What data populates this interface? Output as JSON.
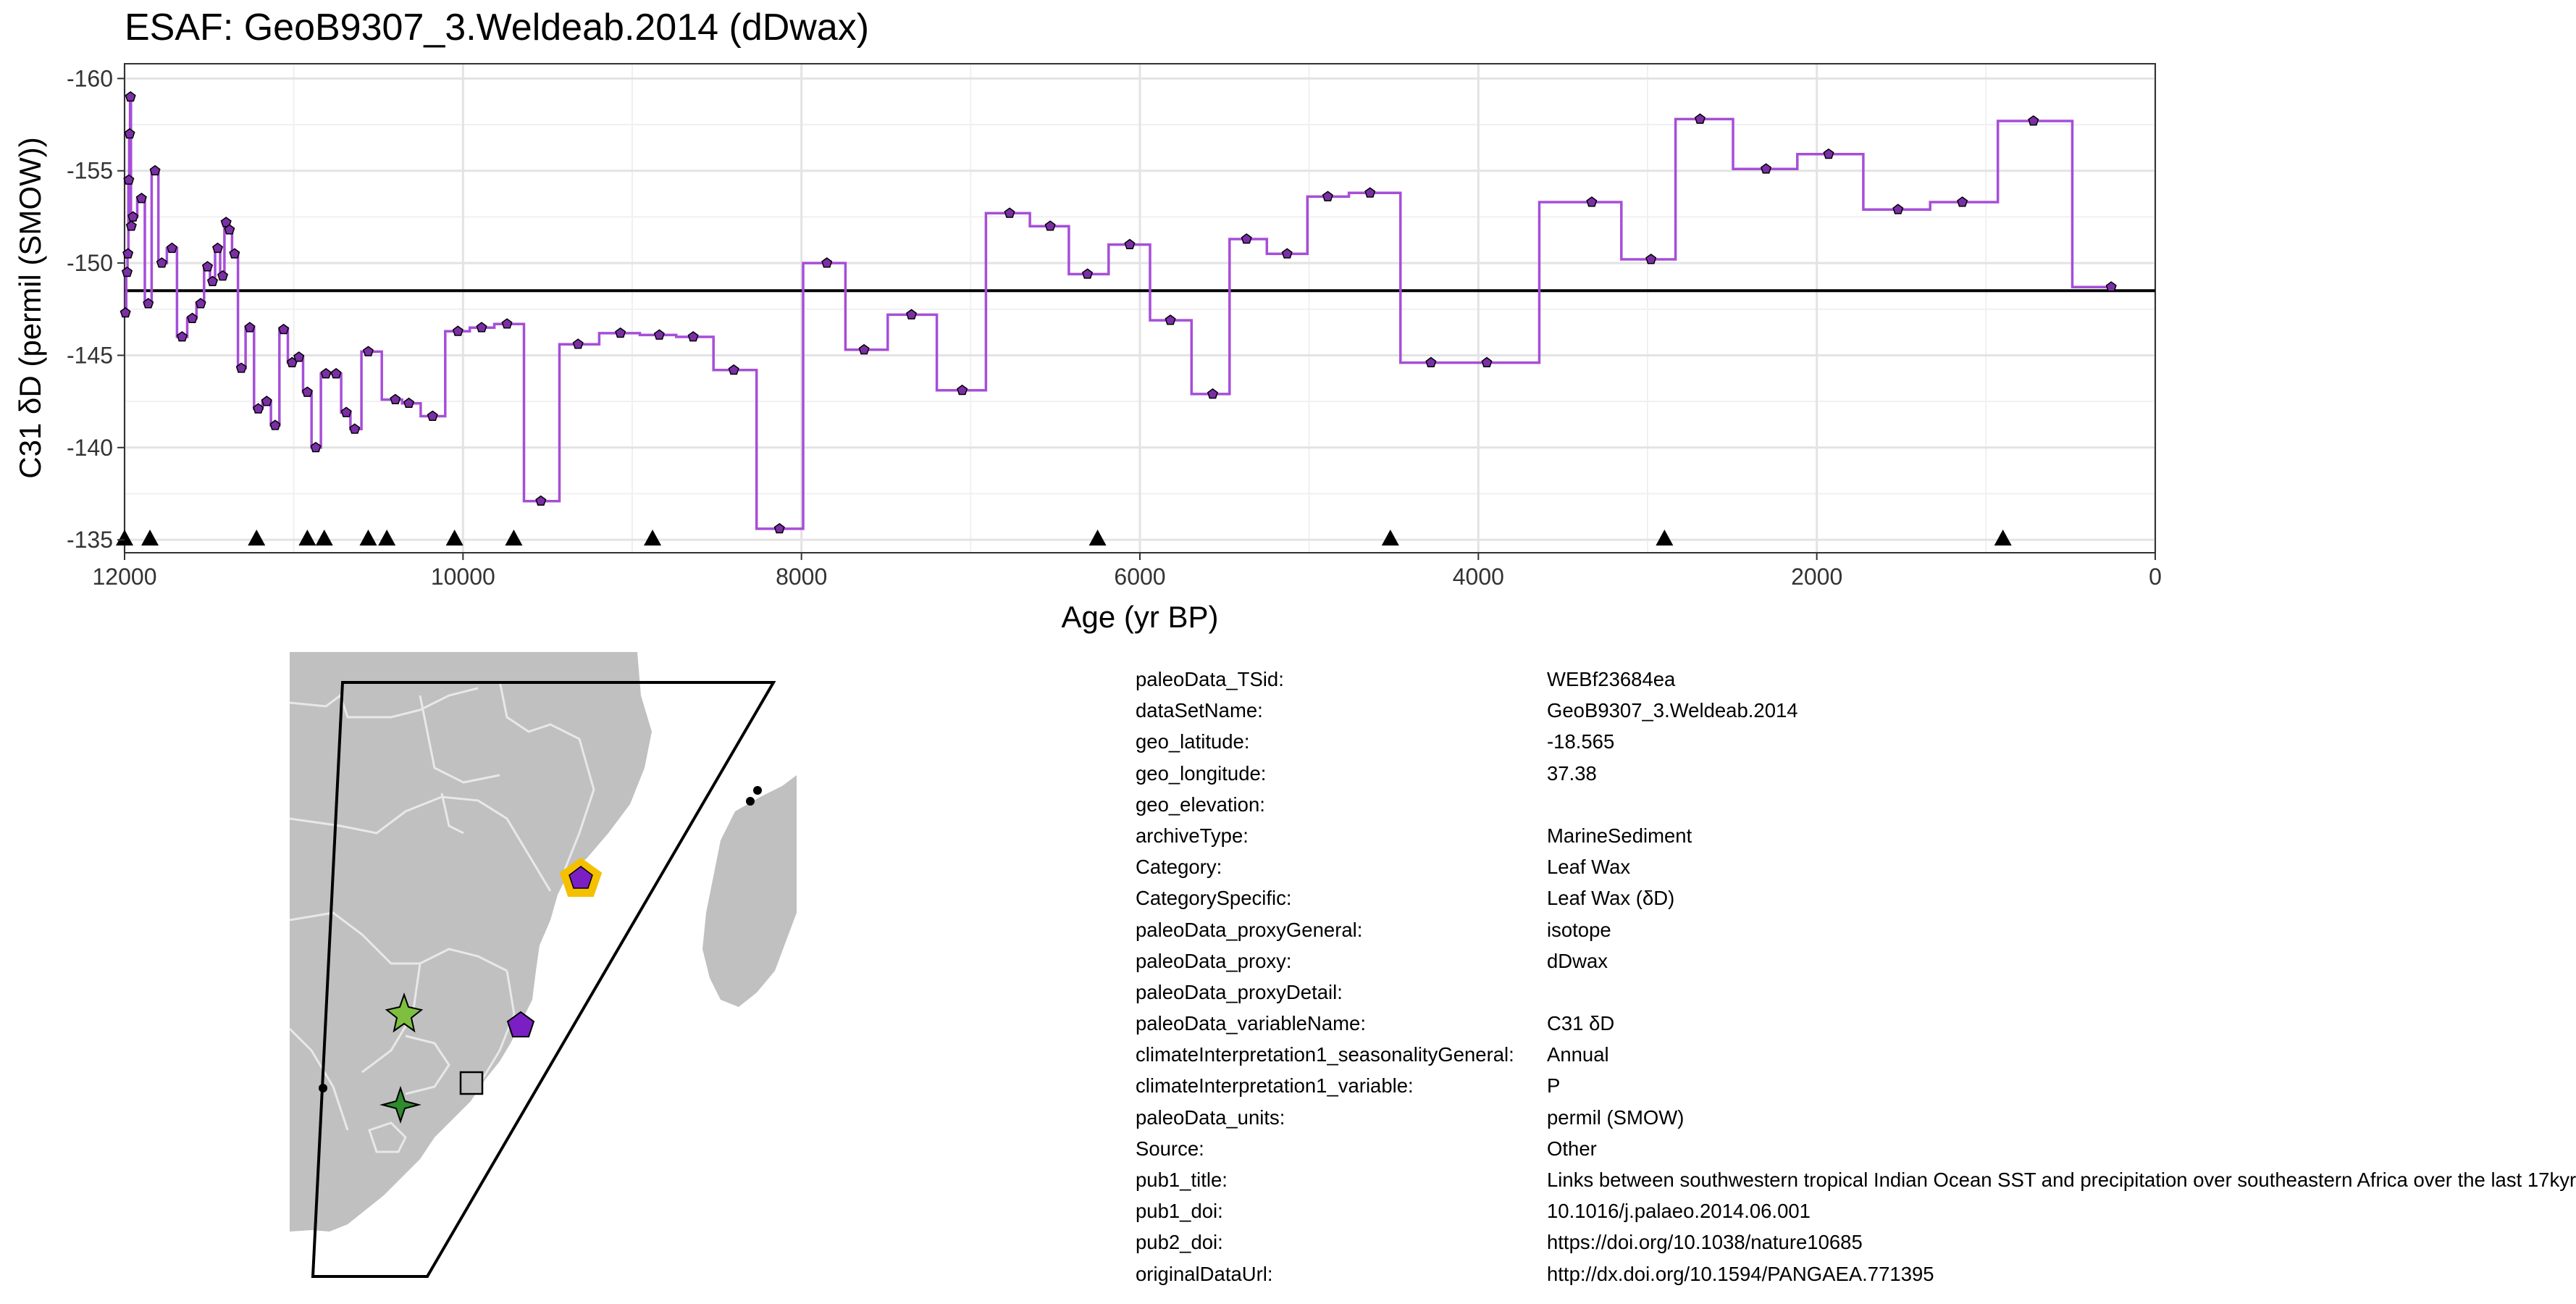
{
  "title": "ESAF: GeoB9307_3.Weldeab.2014 (dDwax)",
  "chart_data": {
    "type": "line",
    "step": true,
    "xlabel": "Age (yr BP)",
    "ylabel": "C31 δD (permil (SMOW))",
    "xlim": [
      12000,
      0
    ],
    "ylim": [
      -134.3,
      -160.8
    ],
    "x_ticks": [
      12000,
      10000,
      8000,
      6000,
      4000,
      2000,
      0
    ],
    "y_ticks": [
      -160,
      -155,
      -150,
      -145,
      -140,
      -135
    ],
    "grid": true,
    "series_color": "#a64ed8",
    "marker_color": "#7b2fa6",
    "reference_line": -148.5,
    "points": [
      [
        11995,
        -147.3
      ],
      [
        11985,
        -149.5
      ],
      [
        11980,
        -150.5
      ],
      [
        11975,
        -154.5
      ],
      [
        11970,
        -157.0
      ],
      [
        11965,
        -159.0
      ],
      [
        11960,
        -152.0
      ],
      [
        11950,
        -152.5
      ],
      [
        11900,
        -153.5
      ],
      [
        11860,
        -147.8
      ],
      [
        11820,
        -155.0
      ],
      [
        11780,
        -150.0
      ],
      [
        11720,
        -150.8
      ],
      [
        11660,
        -146.0
      ],
      [
        11600,
        -147.0
      ],
      [
        11550,
        -147.8
      ],
      [
        11510,
        -149.8
      ],
      [
        11480,
        -149.0
      ],
      [
        11450,
        -150.8
      ],
      [
        11420,
        -149.3
      ],
      [
        11400,
        -152.2
      ],
      [
        11380,
        -151.8
      ],
      [
        11350,
        -150.5
      ],
      [
        11310,
        -144.3
      ],
      [
        11260,
        -146.5
      ],
      [
        11210,
        -142.1
      ],
      [
        11160,
        -142.5
      ],
      [
        11110,
        -141.2
      ],
      [
        11060,
        -146.4
      ],
      [
        11010,
        -144.6
      ],
      [
        10970,
        -144.9
      ],
      [
        10920,
        -143.0
      ],
      [
        10870,
        -140.0
      ],
      [
        10810,
        -144.0
      ],
      [
        10750,
        -144.0
      ],
      [
        10690,
        -141.9
      ],
      [
        10640,
        -141.0
      ],
      [
        10560,
        -145.2
      ],
      [
        10400,
        -142.6
      ],
      [
        10320,
        -142.4
      ],
      [
        10180,
        -141.7
      ],
      [
        10030,
        -146.3
      ],
      [
        9890,
        -146.5
      ],
      [
        9740,
        -146.7
      ],
      [
        9540,
        -137.1
      ],
      [
        9320,
        -145.6
      ],
      [
        9070,
        -146.2
      ],
      [
        8840,
        -146.1
      ],
      [
        8640,
        -146.0
      ],
      [
        8400,
        -144.2
      ],
      [
        8130,
        -135.6
      ],
      [
        7850,
        -150.0
      ],
      [
        7630,
        -145.3
      ],
      [
        7350,
        -147.2
      ],
      [
        7050,
        -143.1
      ],
      [
        6770,
        -152.7
      ],
      [
        6530,
        -152.0
      ],
      [
        6310,
        -149.4
      ],
      [
        6060,
        -151.0
      ],
      [
        5820,
        -146.9
      ],
      [
        5570,
        -142.9
      ],
      [
        5370,
        -151.3
      ],
      [
        5130,
        -150.5
      ],
      [
        4890,
        -153.6
      ],
      [
        4640,
        -153.8
      ],
      [
        4280,
        -144.6
      ],
      [
        3950,
        -144.6
      ],
      [
        3330,
        -153.3
      ],
      [
        2980,
        -150.2
      ],
      [
        2690,
        -157.8
      ],
      [
        2300,
        -155.1
      ],
      [
        1930,
        -155.9
      ],
      [
        1520,
        -152.9
      ],
      [
        1140,
        -153.3
      ],
      [
        720,
        -157.7
      ],
      [
        260,
        -148.7
      ]
    ],
    "chron_control_ages": [
      12000,
      11850,
      11220,
      10920,
      10820,
      10560,
      10450,
      10050,
      9700,
      8880,
      6250,
      4520,
      2900,
      900
    ]
  },
  "map": {
    "region_label": "ESAF",
    "land_color": "#c0c0c0",
    "border_color": "#e8e8e8",
    "highlight_color": "#f5c000",
    "site_colors": {
      "this_site": "#7b1fc4",
      "pentagon": "#7b1fc4",
      "star_light": "#7fbf3f",
      "star_dark": "#2e8b2e",
      "square": "#c0c0c0"
    }
  },
  "metadata": [
    {
      "key": "paleoData_TSid:",
      "value": "WEBf23684ea"
    },
    {
      "key": "dataSetName:",
      "value": "GeoB9307_3.Weldeab.2014"
    },
    {
      "key": "geo_latitude:",
      "value": "-18.565"
    },
    {
      "key": "geo_longitude:",
      "value": "37.38"
    },
    {
      "key": "geo_elevation:",
      "value": ""
    },
    {
      "key": "archiveType:",
      "value": "MarineSediment"
    },
    {
      "key": "Category:",
      "value": "Leaf Wax"
    },
    {
      "key": "CategorySpecific:",
      "value": "Leaf Wax (δD)"
    },
    {
      "key": "paleoData_proxyGeneral:",
      "value": "isotope"
    },
    {
      "key": "paleoData_proxy:",
      "value": "dDwax"
    },
    {
      "key": "paleoData_proxyDetail:",
      "value": ""
    },
    {
      "key": "paleoData_variableName:",
      "value": "C31 δD"
    },
    {
      "key": "climateInterpretation1_seasonalityGeneral:",
      "value": "Annual"
    },
    {
      "key": "climateInterpretation1_variable:",
      "value": "P"
    },
    {
      "key": "paleoData_units:",
      "value": "permil (SMOW)"
    },
    {
      "key": "Source:",
      "value": "Other"
    },
    {
      "key": "pub1_title:",
      "value": "Links between southwestern tropical Indian Ocean SST and precipitation over southeastern Africa over the last 17kyr"
    },
    {
      "key": "pub1_doi:",
      "value": "10.1016/j.palaeo.2014.06.001"
    },
    {
      "key": "pub2_doi:",
      "value": "https://doi.org/10.1038/nature10685"
    },
    {
      "key": "originalDataUrl:",
      "value": "http://dx.doi.org/10.1594/PANGAEA.771395"
    }
  ]
}
